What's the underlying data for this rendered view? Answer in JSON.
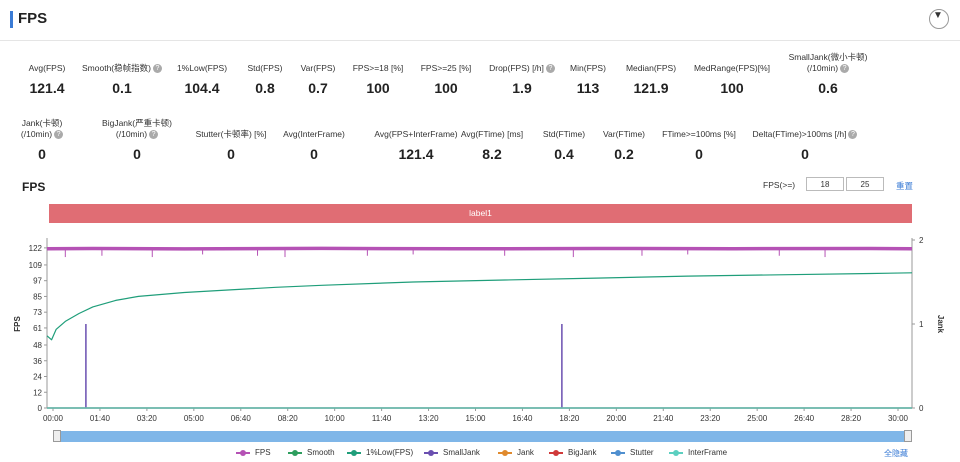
{
  "header": {
    "title": "FPS"
  },
  "metrics_row1": [
    {
      "label": "Avg(FPS)",
      "value": "121.4",
      "help": false
    },
    {
      "label": "Smooth(稳帧指数)",
      "value": "0.1",
      "help": true
    },
    {
      "label": "1%Low(FPS)",
      "value": "104.4",
      "help": false
    },
    {
      "label": "Std(FPS)",
      "value": "0.8",
      "help": false
    },
    {
      "label": "Var(FPS)",
      "value": "0.7",
      "help": false
    },
    {
      "label": "FPS>=18 [%]",
      "value": "100",
      "help": false
    },
    {
      "label": "FPS>=25 [%]",
      "value": "100",
      "help": false
    },
    {
      "label": "Drop(FPS) [/h]",
      "value": "1.9",
      "help": true
    },
    {
      "label": "Min(FPS)",
      "value": "113",
      "help": false
    },
    {
      "label": "Median(FPS)",
      "value": "121.9",
      "help": false
    },
    {
      "label": "MedRange(FPS)[%]",
      "value": "100",
      "help": false
    },
    {
      "label": "SmallJank(微小卡顿)\n(/10min)",
      "value": "0.6",
      "help": true
    }
  ],
  "metrics_row2": [
    {
      "label": "Jank(卡顿)\n(/10min)",
      "value": "0",
      "help": true
    },
    {
      "label": "BigJank(严重卡顿)\n(/10min)",
      "value": "0",
      "help": true
    },
    {
      "label": "Stutter(卡顿率) [%]",
      "value": "0",
      "help": false
    },
    {
      "label": "Avg(InterFrame)",
      "value": "0",
      "help": false
    },
    {
      "label": "Avg(FPS+InterFrame)",
      "value": "121.4",
      "help": false
    },
    {
      "label": "Avg(FTime) [ms]",
      "value": "8.2",
      "help": false
    },
    {
      "label": "Std(FTime)",
      "value": "0.4",
      "help": false
    },
    {
      "label": "Var(FTime)",
      "value": "0.2",
      "help": false
    },
    {
      "label": "FTime>=100ms [%]",
      "value": "0",
      "help": false
    },
    {
      "label": "Delta(FTime)>100ms [/h]",
      "value": "0",
      "help": true
    }
  ],
  "chart": {
    "title": "FPS",
    "threshold_label": "FPS(>=)",
    "threshold_1": "18",
    "threshold_2": "25",
    "reset_label": "重置",
    "band_label": "label1",
    "hide_all_label": "全隐藏",
    "colors": {
      "fps": "#b552b5",
      "smooth": "#2e9e5e",
      "low1": "#1f9e7a",
      "smalljank": "#6a4fb0",
      "jank": "#e08a2e",
      "bigjank": "#d03a3a",
      "stutter": "#4f8fcf",
      "interframe": "#5ccfc0"
    }
  },
  "chart_data": {
    "type": "line",
    "title": "",
    "xlabel": "",
    "ylabel": "FPS",
    "ylabel_right": "Jank",
    "y_ticks": [
      0,
      12,
      24,
      36,
      48,
      61,
      73,
      85,
      97,
      109,
      122
    ],
    "y_right_ticks": [
      0,
      1,
      2
    ],
    "ylim": [
      0,
      128
    ],
    "ylim_right": [
      0,
      2
    ],
    "x_ticks": [
      "00:00",
      "01:40",
      "03:20",
      "05:00",
      "06:40",
      "08:20",
      "10:00",
      "11:40",
      "13:20",
      "15:00",
      "16:40",
      "18:20",
      "20:00",
      "21:40",
      "23:20",
      "25:00",
      "26:40",
      "28:20",
      "30:00"
    ],
    "x_range_seconds": [
      0,
      1890
    ],
    "series": [
      {
        "name": "FPS",
        "axis": "left",
        "points": [
          [
            0,
            121.4
          ],
          [
            100,
            121.5
          ],
          [
            300,
            121.2
          ],
          [
            600,
            121.6
          ],
          [
            900,
            121.3
          ],
          [
            1200,
            121.5
          ],
          [
            1500,
            121.4
          ],
          [
            1800,
            121.5
          ],
          [
            1890,
            121.4
          ]
        ],
        "dips": [
          [
            40,
            115
          ],
          [
            120,
            116
          ],
          [
            230,
            115
          ],
          [
            340,
            117
          ],
          [
            460,
            116
          ],
          [
            520,
            115
          ],
          [
            700,
            116
          ],
          [
            800,
            117
          ],
          [
            1000,
            116
          ],
          [
            1150,
            115
          ],
          [
            1300,
            116
          ],
          [
            1400,
            117
          ],
          [
            1600,
            116
          ],
          [
            1700,
            115
          ]
        ]
      },
      {
        "name": "Smooth",
        "axis": "left",
        "points": [
          [
            0,
            0
          ],
          [
            1890,
            0
          ]
        ]
      },
      {
        "name": "1%Low(FPS)",
        "axis": "left",
        "points": [
          [
            0,
            55
          ],
          [
            10,
            52
          ],
          [
            20,
            60
          ],
          [
            40,
            66
          ],
          [
            70,
            72
          ],
          [
            100,
            77
          ],
          [
            150,
            82
          ],
          [
            200,
            85
          ],
          [
            300,
            88
          ],
          [
            400,
            90
          ],
          [
            500,
            92
          ],
          [
            600,
            93.5
          ],
          [
            800,
            96
          ],
          [
            1000,
            97.5
          ],
          [
            1200,
            99
          ],
          [
            1400,
            100.5
          ],
          [
            1600,
            101.5
          ],
          [
            1800,
            102.5
          ],
          [
            1890,
            103
          ]
        ]
      },
      {
        "name": "SmallJank",
        "axis": "right",
        "points": [
          [
            85,
            1
          ],
          [
            1125,
            1
          ]
        ]
      },
      {
        "name": "Jank",
        "axis": "right",
        "points": [
          [
            0,
            0
          ],
          [
            1890,
            0
          ]
        ]
      },
      {
        "name": "BigJank",
        "axis": "right",
        "points": [
          [
            0,
            0
          ],
          [
            1890,
            0
          ]
        ]
      },
      {
        "name": "Stutter",
        "axis": "left",
        "points": [
          [
            0,
            0
          ],
          [
            1890,
            0
          ]
        ]
      },
      {
        "name": "InterFrame",
        "axis": "left",
        "points": [
          [
            0,
            0
          ],
          [
            1890,
            0
          ]
        ]
      }
    ]
  }
}
